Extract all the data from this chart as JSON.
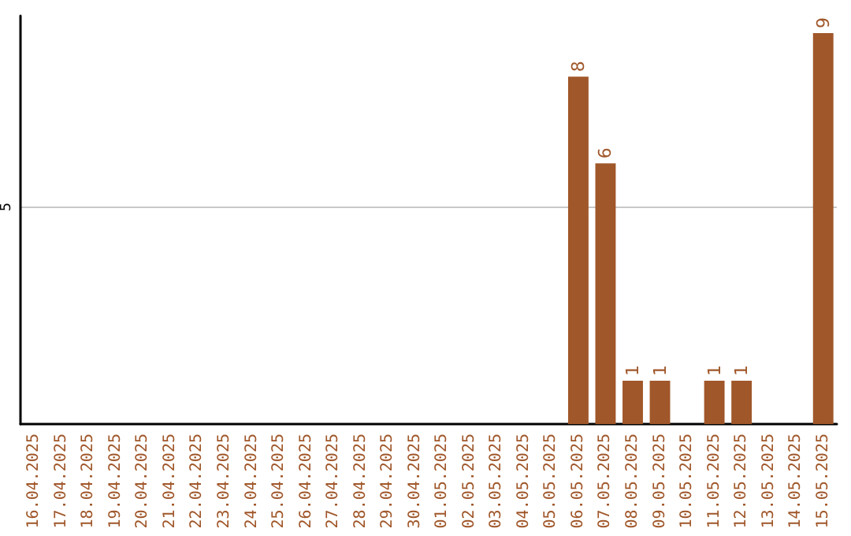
{
  "chart_data": {
    "type": "bar",
    "categories": [
      "16.04.2025",
      "17.04.2025",
      "18.04.2025",
      "19.04.2025",
      "20.04.2025",
      "21.04.2025",
      "22.04.2025",
      "23.04.2025",
      "24.04.2025",
      "25.04.2025",
      "26.04.2025",
      "27.04.2025",
      "28.04.2025",
      "29.04.2025",
      "30.04.2025",
      "01.05.2025",
      "02.05.2025",
      "03.05.2025",
      "04.05.2025",
      "05.05.2025",
      "06.05.2025",
      "07.05.2025",
      "08.05.2025",
      "09.05.2025",
      "10.05.2025",
      "11.05.2025",
      "12.05.2025",
      "13.05.2025",
      "14.05.2025",
      "15.05.2025"
    ],
    "values": [
      null,
      null,
      null,
      null,
      null,
      null,
      null,
      null,
      null,
      null,
      null,
      null,
      null,
      null,
      null,
      null,
      null,
      null,
      null,
      null,
      8,
      6,
      1,
      1,
      null,
      1,
      1,
      null,
      null,
      9
    ],
    "color": "#a0572a",
    "ylim": [
      0,
      9.4
    ],
    "yticks": [
      5
    ],
    "grid": "y",
    "data_labels": true
  }
}
